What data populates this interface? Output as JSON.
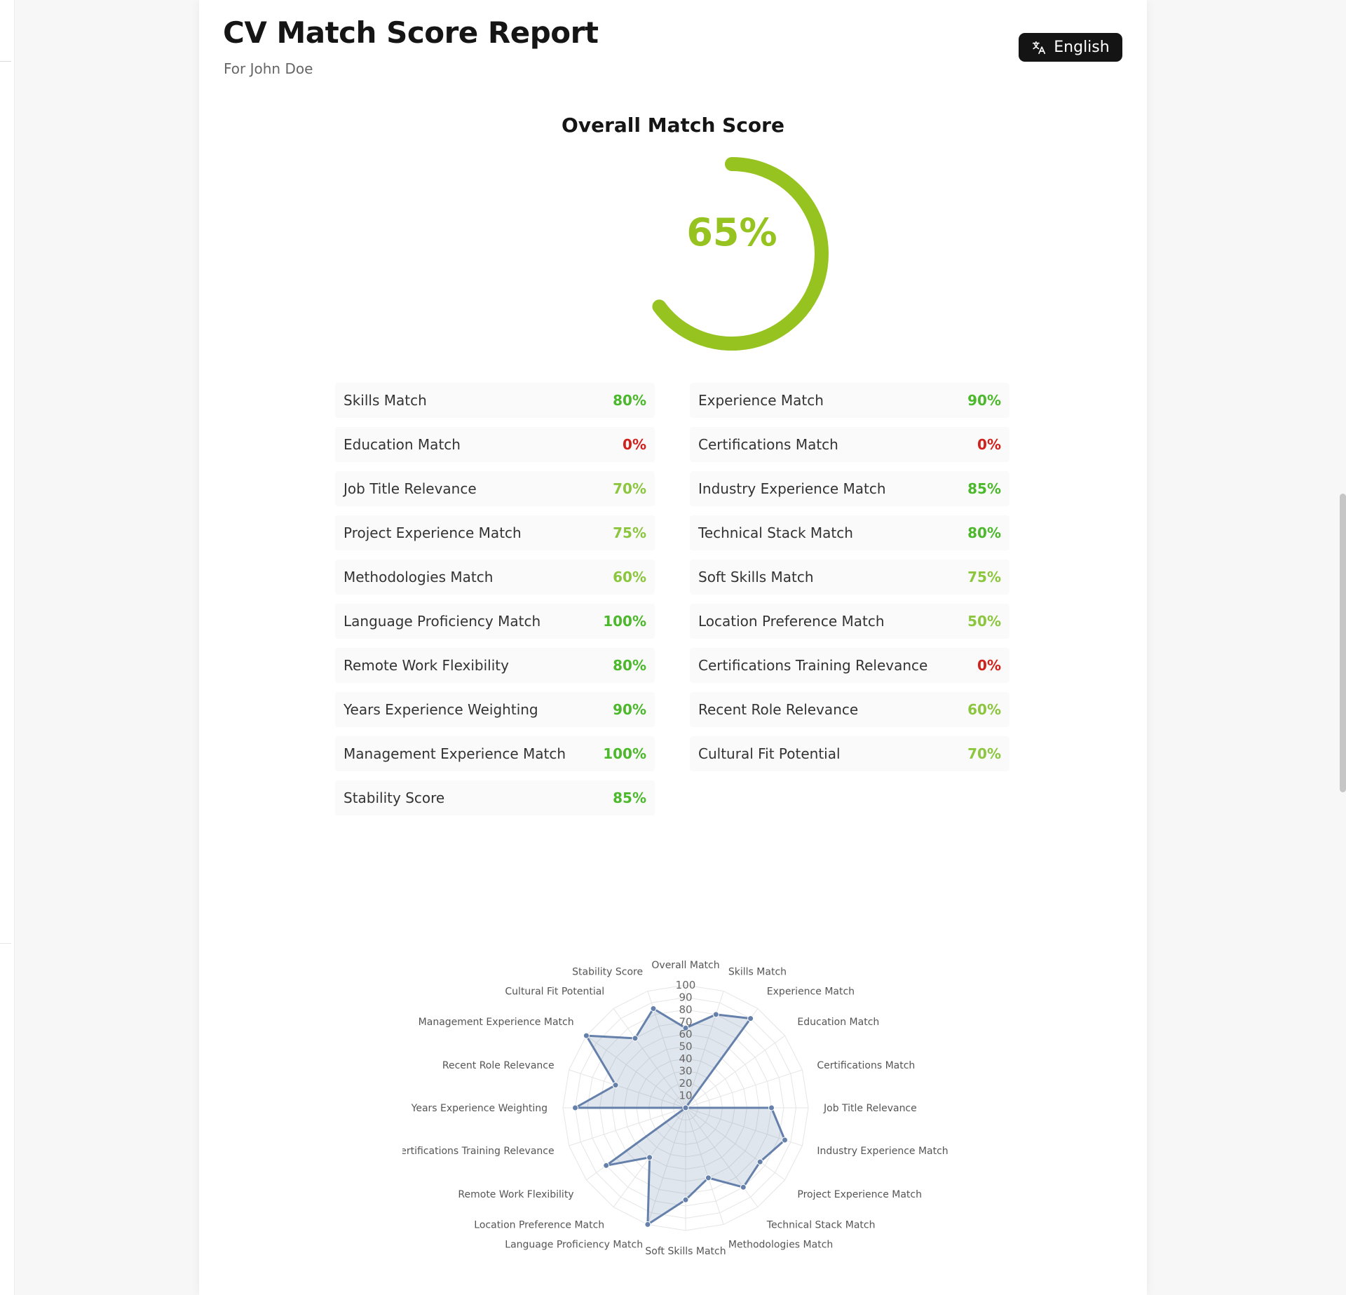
{
  "header": {
    "title": "CV Match Score Report",
    "subtitle": "For John Doe",
    "language_label": "English"
  },
  "overall": {
    "title": "Overall Match Score",
    "value_label": "65%",
    "value": 65,
    "color": "#96c320"
  },
  "metrics": [
    {
      "label": "Skills Match",
      "value": 80,
      "display": "80%"
    },
    {
      "label": "Experience Match",
      "value": 90,
      "display": "90%"
    },
    {
      "label": "Education Match",
      "value": 0,
      "display": "0%"
    },
    {
      "label": "Certifications Match",
      "value": 0,
      "display": "0%"
    },
    {
      "label": "Job Title Relevance",
      "value": 70,
      "display": "70%"
    },
    {
      "label": "Industry Experience Match",
      "value": 85,
      "display": "85%"
    },
    {
      "label": "Project Experience Match",
      "value": 75,
      "display": "75%"
    },
    {
      "label": "Technical Stack Match",
      "value": 80,
      "display": "80%"
    },
    {
      "label": "Methodologies Match",
      "value": 60,
      "display": "60%"
    },
    {
      "label": "Soft Skills Match",
      "value": 75,
      "display": "75%"
    },
    {
      "label": "Language Proficiency Match",
      "value": 100,
      "display": "100%"
    },
    {
      "label": "Location Preference Match",
      "value": 50,
      "display": "50%"
    },
    {
      "label": "Remote Work Flexibility",
      "value": 80,
      "display": "80%"
    },
    {
      "label": "Certifications Training Relevance",
      "value": 0,
      "display": "0%"
    },
    {
      "label": "Years Experience Weighting",
      "value": 90,
      "display": "90%"
    },
    {
      "label": "Recent Role Relevance",
      "value": 60,
      "display": "60%"
    },
    {
      "label": "Management Experience Match",
      "value": 100,
      "display": "100%"
    },
    {
      "label": "Cultural Fit Potential",
      "value": 70,
      "display": "70%"
    },
    {
      "label": "Stability Score",
      "value": 85,
      "display": "85%"
    }
  ],
  "colors": {
    "high": "#4cb82b",
    "mid": "#8cc63f",
    "zero": "#d0211c",
    "radar_line": "#6580aa",
    "radar_fill": "rgba(101,128,170,0.2)",
    "grid": "#e5e5e5"
  },
  "chart_data": {
    "type": "radar",
    "categories": [
      "Overall Match",
      "Skills Match",
      "Experience Match",
      "Education Match",
      "Certifications Match",
      "Job Title Relevance",
      "Industry Experience Match",
      "Project Experience Match",
      "Technical Stack Match",
      "Methodologies Match",
      "Soft Skills Match",
      "Language Proficiency Match",
      "Location Preference Match",
      "Remote Work Flexibility",
      "Certifications Training Relevance",
      "Years Experience Weighting",
      "Recent Role Relevance",
      "Management Experience Match",
      "Cultural Fit Potential",
      "Stability Score"
    ],
    "values": [
      65,
      80,
      90,
      0,
      0,
      70,
      85,
      75,
      80,
      60,
      75,
      100,
      50,
      80,
      0,
      90,
      60,
      100,
      70,
      85
    ],
    "ticks": [
      "10",
      "20",
      "30",
      "40",
      "50",
      "60",
      "70",
      "80",
      "90",
      "100"
    ],
    "range": [
      0,
      100
    ],
    "grid": true
  }
}
